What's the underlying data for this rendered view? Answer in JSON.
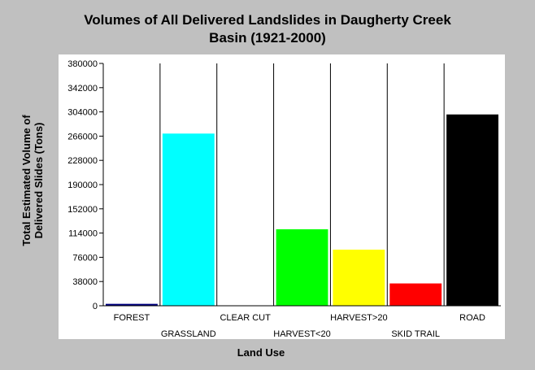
{
  "chart_data": {
    "type": "bar",
    "title_lines": [
      "Volumes of All Delivered Landslides in Daugherty Creek",
      "Basin (1921-2000)"
    ],
    "xlabel": "Land Use",
    "ylabel_lines": [
      "Total Estimated Volume of",
      "Delivered Slides (Tons)"
    ],
    "categories": [
      "FOREST",
      "GRASSLAND",
      "CLEAR CUT",
      "HARVEST<20",
      "HARVEST>20",
      "SKID TRAIL",
      "ROAD"
    ],
    "values": [
      3000,
      270000,
      0,
      120000,
      88000,
      35000,
      300000
    ],
    "colors": [
      "#000080",
      "#00ffff",
      "#c0c0c0",
      "#00ff00",
      "#ffff00",
      "#ff0000",
      "#000000"
    ],
    "yticks": [
      "0",
      "38000",
      "76000",
      "114000",
      "152000",
      "190000",
      "228000",
      "266000",
      "304000",
      "342000",
      "380000"
    ],
    "ylim": [
      0,
      380000
    ],
    "grid": "vertical separators between categories",
    "legend": "none"
  }
}
